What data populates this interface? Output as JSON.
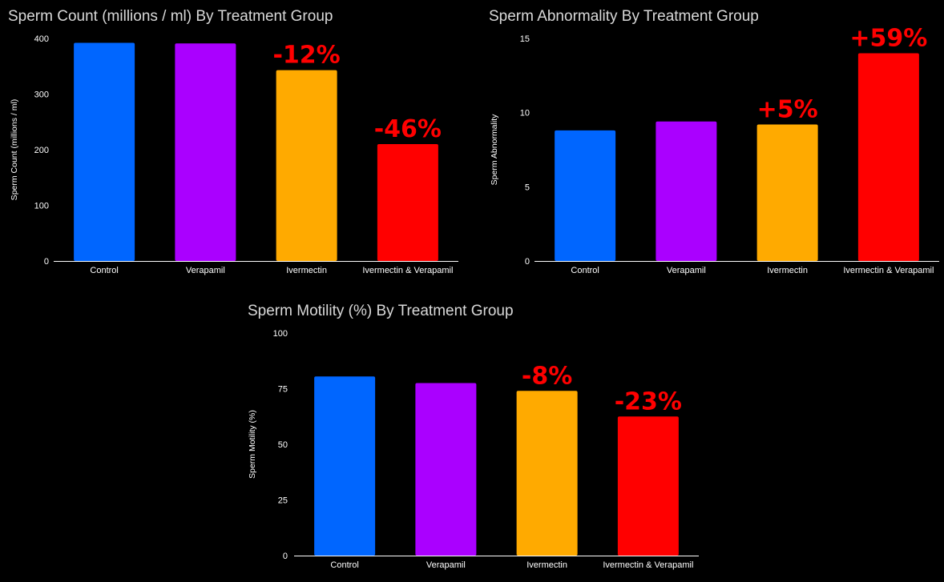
{
  "colors": {
    "Control": "#0066ff",
    "Verapamil": "#aa00ff",
    "Ivermectin": "#ffaa00",
    "Ivermectin & Verapamil": "#ff0000",
    "background": "#000000",
    "annotation": "#ff0000"
  },
  "chart_data": [
    {
      "id": "count",
      "type": "bar",
      "title": "Sperm Count (millions / ml) By Treatment Group",
      "xlabel": "",
      "ylabel": "Sperm Count (millions / ml)",
      "categories": [
        "Control",
        "Verapamil",
        "Ivermectin",
        "Ivermectin & Verapamil"
      ],
      "values": [
        392,
        391,
        343,
        210
      ],
      "ylim": [
        0,
        400
      ],
      "yticks": [
        "0",
        "100",
        "200",
        "300",
        "400"
      ],
      "annotations": [
        "",
        "",
        "-12%",
        "-46%"
      ],
      "grid": false,
      "legend": "none"
    },
    {
      "id": "abn",
      "type": "bar",
      "title": "Sperm Abnormality By Treatment Group",
      "xlabel": "",
      "ylabel": "Sperm Abnormality",
      "categories": [
        "Control",
        "Verapamil",
        "Ivermectin",
        "Ivermectin & Verapamil"
      ],
      "values": [
        8.8,
        9.4,
        9.2,
        14.0
      ],
      "ylim": [
        0,
        15
      ],
      "yticks": [
        "0",
        "5",
        "10",
        "15"
      ],
      "annotations": [
        "",
        "",
        "+5%",
        "+59%"
      ],
      "grid": false,
      "legend": "none"
    },
    {
      "id": "mot",
      "type": "bar",
      "title": "Sperm Motility (%) By Treatment Group",
      "xlabel": "",
      "ylabel": "Sperm Motility (%)",
      "categories": [
        "Control",
        "Verapamil",
        "Ivermectin",
        "Ivermectin & Verapamil"
      ],
      "values": [
        80.5,
        77.5,
        74,
        62.5
      ],
      "ylim": [
        0,
        100
      ],
      "yticks": [
        "0",
        "25",
        "50",
        "75",
        "100"
      ],
      "annotations": [
        "",
        "",
        "-8%",
        "-23%"
      ],
      "grid": false,
      "legend": "none"
    }
  ]
}
